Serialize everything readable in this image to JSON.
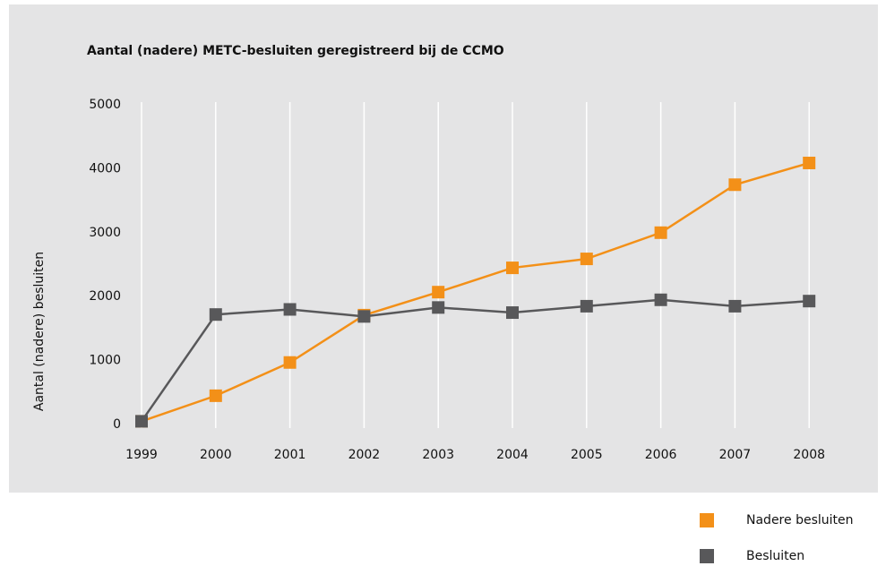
{
  "chart_data": {
    "type": "line",
    "title": "Aantal (nadere) METC-besluiten geregistreerd bij de CCMO",
    "y_label": "Aantal (nadere) besluiten",
    "categories": [
      "1999",
      "2000",
      "2001",
      "2002",
      "2003",
      "2004",
      "2005",
      "2006",
      "2007",
      "2008"
    ],
    "series": [
      {
        "name": "Nadere besluiten",
        "color": "#f39018",
        "values": [
          50,
          450,
          970,
          1710,
          2070,
          2450,
          2590,
          3000,
          3750,
          4090
        ]
      },
      {
        "name": "Besluiten",
        "color": "#58585a",
        "values": [
          50,
          1720,
          1800,
          1690,
          1830,
          1750,
          1850,
          1950,
          1850,
          1930
        ]
      }
    ],
    "ylim": [
      0,
      5000
    ],
    "yticks": [
      0,
      1000,
      2000,
      3000,
      4000,
      5000
    ],
    "grid": true,
    "legend": "bottom-right"
  }
}
